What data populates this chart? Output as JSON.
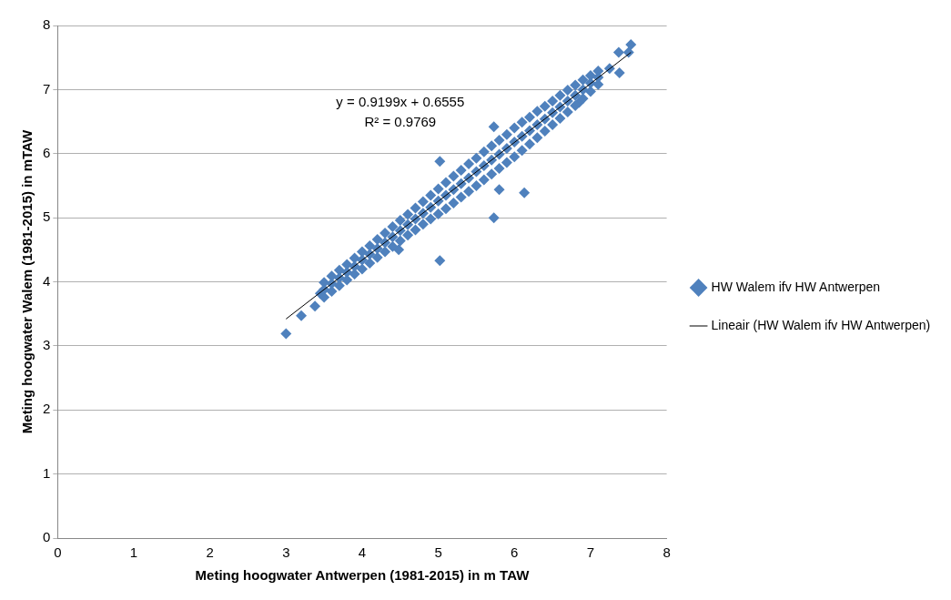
{
  "chart_data": {
    "type": "scatter",
    "xlabel": "Meting hoogwater Antwerpen (1981-2015) in m TAW",
    "ylabel": "Meting hoogwater Walem (1981-2015) in mTAW",
    "xlim": [
      0,
      8
    ],
    "xticks": [
      0,
      1,
      2,
      3,
      4,
      5,
      6,
      7,
      8
    ],
    "ylim": [
      0,
      8
    ],
    "yticks": [
      0,
      1,
      2,
      3,
      4,
      5,
      6,
      7,
      8
    ],
    "grid": "y",
    "legend": "right",
    "annotations": [
      "y = 0.9199x + 0.6555",
      "R² = 0.9769"
    ],
    "series": [
      {
        "name": "HW Walem ifv HW Antwerpen",
        "color": "#4f81bd",
        "marker": "diamond",
        "x": [
          3.0,
          3.2,
          3.38,
          3.45,
          5.02,
          5.02,
          5.73,
          5.8,
          6.13,
          5.73,
          4.48,
          7.53,
          7.5,
          7.37,
          7.38,
          7.25,
          6.85,
          3.5,
          3.5,
          3.5,
          3.6,
          3.6,
          3.6,
          3.7,
          3.7,
          3.7,
          3.8,
          3.8,
          3.8,
          3.9,
          3.9,
          3.9,
          4.0,
          4.0,
          4.0,
          4.1,
          4.1,
          4.1,
          4.2,
          4.2,
          4.2,
          4.3,
          4.3,
          4.3,
          4.4,
          4.4,
          4.4,
          4.5,
          4.5,
          4.5,
          4.6,
          4.6,
          4.6,
          4.7,
          4.7,
          4.7,
          4.8,
          4.8,
          4.8,
          4.9,
          4.9,
          4.9,
          5.0,
          5.0,
          5.0,
          5.1,
          5.1,
          5.1,
          5.2,
          5.2,
          5.2,
          5.3,
          5.3,
          5.3,
          5.4,
          5.4,
          5.4,
          5.5,
          5.5,
          5.5,
          5.6,
          5.6,
          5.6,
          5.7,
          5.7,
          5.7,
          5.8,
          5.8,
          5.8,
          5.9,
          5.9,
          5.9,
          6.0,
          6.0,
          6.0,
          6.1,
          6.1,
          6.1,
          6.2,
          6.2,
          6.2,
          6.3,
          6.3,
          6.3,
          6.4,
          6.4,
          6.4,
          6.5,
          6.5,
          6.5,
          6.6,
          6.6,
          6.6,
          6.7,
          6.7,
          6.7,
          6.8,
          6.8,
          6.8,
          6.9,
          6.9,
          6.9,
          7.0,
          7.0,
          7.0,
          7.1,
          7.1,
          7.1
        ],
        "values": [
          3.19,
          3.47,
          3.62,
          3.82,
          5.88,
          4.33,
          5.0,
          5.44,
          5.39,
          6.42,
          4.5,
          7.7,
          7.58,
          7.58,
          7.26,
          7.33,
          6.8,
          3.99,
          3.88,
          3.76,
          4.09,
          3.97,
          3.85,
          4.18,
          4.06,
          3.94,
          4.27,
          4.15,
          4.03,
          4.37,
          4.24,
          4.12,
          4.47,
          4.34,
          4.2,
          4.56,
          4.43,
          4.29,
          4.66,
          4.52,
          4.38,
          4.76,
          4.61,
          4.47,
          4.86,
          4.7,
          4.55,
          4.96,
          4.8,
          4.64,
          5.05,
          4.89,
          4.73,
          5.15,
          4.98,
          4.81,
          5.25,
          5.07,
          4.9,
          5.35,
          5.16,
          4.98,
          5.45,
          5.26,
          5.06,
          5.55,
          5.35,
          5.14,
          5.65,
          5.44,
          5.23,
          5.74,
          5.53,
          5.32,
          5.84,
          5.62,
          5.41,
          5.93,
          5.72,
          5.5,
          6.03,
          5.81,
          5.59,
          6.12,
          5.9,
          5.68,
          6.21,
          5.99,
          5.77,
          6.3,
          6.08,
          5.86,
          6.4,
          6.18,
          5.95,
          6.49,
          6.27,
          6.05,
          6.57,
          6.36,
          6.15,
          6.66,
          6.45,
          6.25,
          6.74,
          6.54,
          6.35,
          6.82,
          6.64,
          6.45,
          6.91,
          6.73,
          6.55,
          6.99,
          6.82,
          6.65,
          7.07,
          6.91,
          6.75,
          7.15,
          7.0,
          6.86,
          7.22,
          7.1,
          6.97,
          7.29,
          7.19,
          7.08
        ]
      },
      {
        "name": "Lineair (HW Walem ifv HW Antwerpen)",
        "type": "line",
        "color": "#000000",
        "line_style": "solid",
        "marker": "none",
        "x": [
          3.0,
          7.53
        ],
        "values": [
          3.42,
          7.58
        ]
      }
    ]
  }
}
